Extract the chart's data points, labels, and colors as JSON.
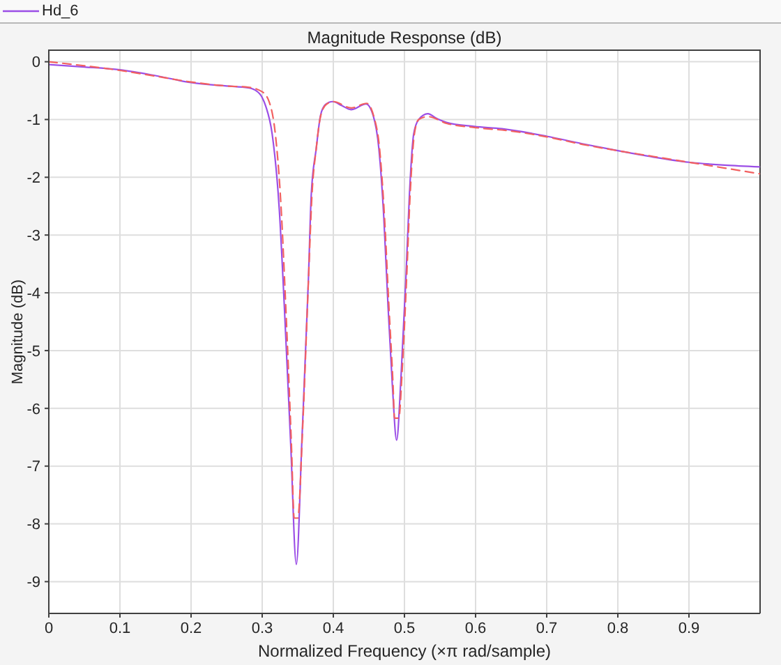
{
  "chart_data": {
    "type": "line",
    "title": "Magnitude Response (dB)",
    "xlabel": "Normalized Frequency (×π rad/sample)",
    "ylabel": "Magnitude (dB)",
    "xlim": [
      0,
      1
    ],
    "ylim": [
      -9.55,
      0.2
    ],
    "xticks": [
      0,
      0.1,
      0.2,
      0.3,
      0.4,
      0.5,
      0.6,
      0.7,
      0.8,
      0.9
    ],
    "yticks": [
      -9,
      -8,
      -7,
      -6,
      -5,
      -4,
      -3,
      -2,
      -1,
      0
    ],
    "grid": true,
    "legend": "top left",
    "series": [
      {
        "name": "Hd_6",
        "color": "#9b4ee6",
        "line_style": "solid",
        "x": [
          0,
          0.05,
          0.1,
          0.15,
          0.2,
          0.25,
          0.28,
          0.29,
          0.3,
          0.305,
          0.314,
          0.324,
          0.331,
          0.34,
          0.348,
          0.356,
          0.365,
          0.369,
          0.376,
          0.382,
          0.389,
          0.399,
          0.412,
          0.425,
          0.446,
          0.456,
          0.464,
          0.471,
          0.477,
          0.483,
          0.489,
          0.495,
          0.502,
          0.507,
          0.513,
          0.52,
          0.533,
          0.545,
          0.559,
          0.598,
          0.637,
          0.7,
          0.75,
          0.8,
          0.85,
          0.9,
          0.95,
          1
        ],
        "values": [
          -0.05,
          -0.09,
          -0.14,
          -0.24,
          -0.36,
          -0.42,
          -0.45,
          -0.49,
          -0.62,
          -0.77,
          -1.25,
          -2.55,
          -4.2,
          -6.6,
          -8.7,
          -6.5,
          -3.76,
          -2.3,
          -1.5,
          -0.93,
          -0.74,
          -0.69,
          -0.76,
          -0.83,
          -0.73,
          -0.93,
          -1.5,
          -2.7,
          -4.25,
          -5.6,
          -6.55,
          -5.5,
          -3.76,
          -2.3,
          -1.25,
          -1,
          -0.9,
          -0.98,
          -1.05,
          -1.12,
          -1.16,
          -1.29,
          -1.42,
          -1.54,
          -1.65,
          -1.74,
          -1.79,
          -1.82
        ]
      },
      {
        "color": "#f26060",
        "line_style": "dashed",
        "x": [
          0,
          0.05,
          0.1,
          0.15,
          0.2,
          0.25,
          0.28,
          0.3,
          0.31,
          0.318,
          0.326,
          0.333,
          0.341,
          0.345,
          0.35,
          0.357,
          0.365,
          0.37,
          0.376,
          0.382,
          0.39,
          0.4,
          0.425,
          0.447,
          0.457,
          0.465,
          0.472,
          0.478,
          0.484,
          0.486,
          0.492,
          0.497,
          0.503,
          0.508,
          0.514,
          0.52,
          0.533,
          0.56,
          0.6,
          0.65,
          0.7,
          0.75,
          0.8,
          0.85,
          0.9,
          0.95,
          1
        ],
        "values": [
          0,
          -0.07,
          -0.15,
          -0.25,
          -0.35,
          -0.42,
          -0.44,
          -0.52,
          -0.7,
          -1.2,
          -2.4,
          -4.2,
          -6.6,
          -7.9,
          -7.9,
          -6.3,
          -3.8,
          -2.3,
          -1.5,
          -0.95,
          -0.74,
          -0.69,
          -0.8,
          -0.72,
          -0.95,
          -1.5,
          -2.7,
          -4.2,
          -5.6,
          -6.17,
          -6.17,
          -5.3,
          -3.76,
          -2.3,
          -1.25,
          -1,
          -0.95,
          -1.07,
          -1.14,
          -1.2,
          -1.3,
          -1.43,
          -1.54,
          -1.64,
          -1.74,
          -1.84,
          -1.94
        ]
      }
    ]
  }
}
